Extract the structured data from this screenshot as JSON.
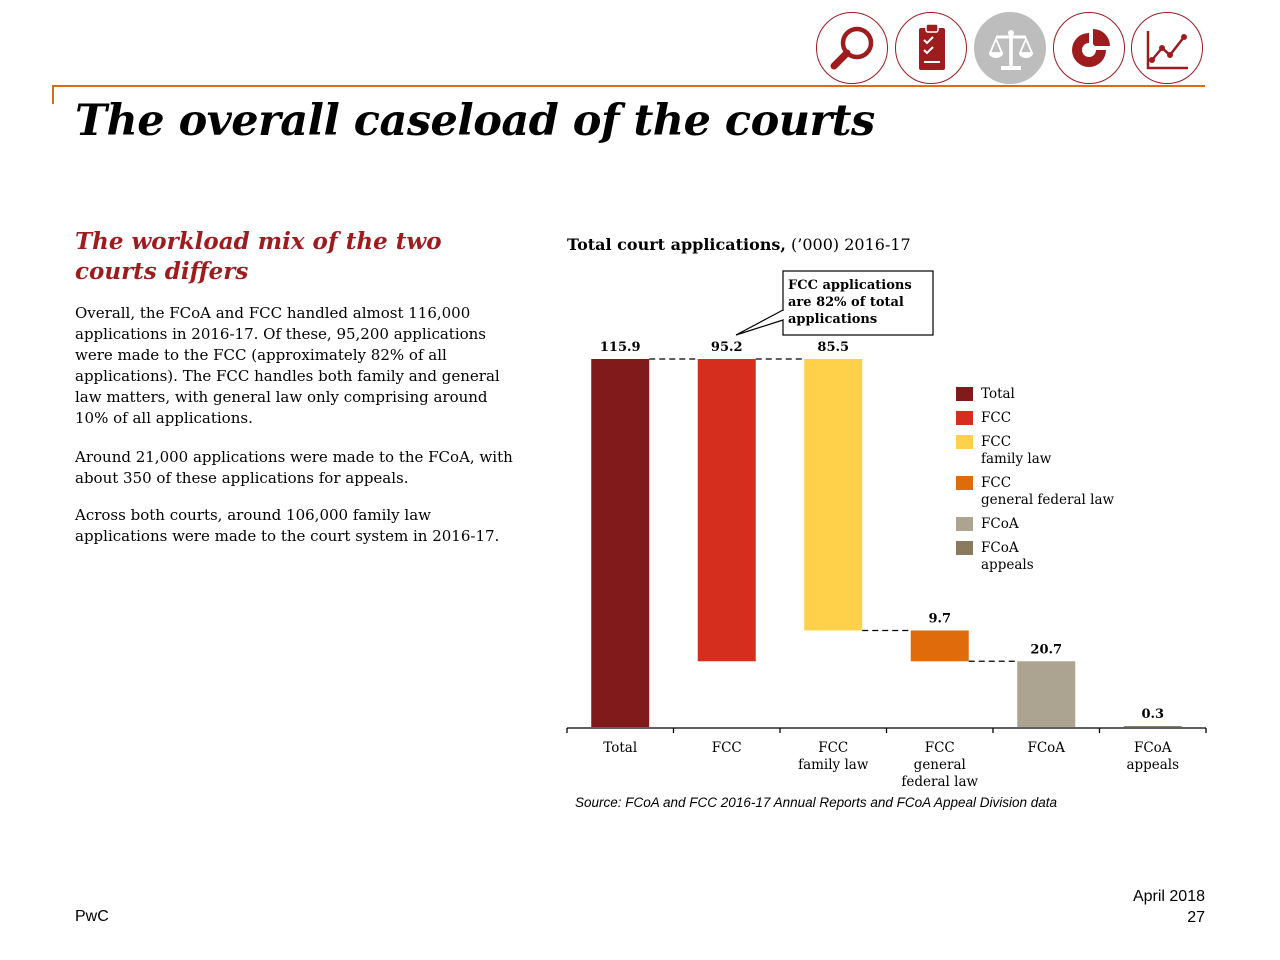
{
  "header": {
    "icons": [
      {
        "name": "search-icon",
        "active": false
      },
      {
        "name": "clipboard-checklist-icon",
        "active": false
      },
      {
        "name": "scales-icon",
        "active": true
      },
      {
        "name": "pie-chart-icon",
        "active": false
      },
      {
        "name": "line-chart-icon",
        "active": false
      }
    ],
    "accent_color": "#e06b16",
    "icon_color": "#9e1b1e"
  },
  "page": {
    "title": "The overall caseload of the courts"
  },
  "left": {
    "subheading": "The workload mix of the two courts differs",
    "paragraphs": [
      "Overall, the FCoA and FCC handled almost 116,000 applications in 2016-17. Of these, 95,200 applications were made to the FCC (approximately 82% of all applications). The FCC handles both family and general law matters, with general law only comprising around 10% of all applications.",
      "Around 21,000 applications were made to the FCoA, with about 350 of these applications for appeals.",
      "Across both courts, around 106,000 family law applications were made to the court system in 2016-17."
    ]
  },
  "chart": {
    "title_bold": "Total court applications,",
    "title_rest": " (’000) 2016-17",
    "callout": "FCC applications are 82% of total applications",
    "source": "Source: FCoA and FCC 2016-17 Annual Reports and FCoA Appeal Division data"
  },
  "chart_data": {
    "type": "bar",
    "subtype": "waterfall",
    "categories": [
      "Total",
      "FCC",
      "FCC\nfamily law",
      "FCC\ngeneral\nfederal law",
      "FCoA",
      "FCoA\nappeals"
    ],
    "values": [
      115.9,
      95.2,
      85.5,
      9.7,
      20.7,
      0.3
    ],
    "labels": [
      "115.9",
      "95.2",
      "85.5",
      "9.7",
      "20.7",
      "0.3"
    ],
    "bars": [
      {
        "bottom": 0,
        "top": 115.9
      },
      {
        "bottom": 20.7,
        "top": 115.9
      },
      {
        "bottom": 30.4,
        "top": 115.9
      },
      {
        "bottom": 20.7,
        "top": 30.4
      },
      {
        "bottom": 0,
        "top": 20.7
      },
      {
        "bottom": 0,
        "top": 0.3
      }
    ],
    "colors": [
      "#811a1a",
      "#d62e1e",
      "#ffd04a",
      "#e06b0a",
      "#aca391",
      "#8a7a5e"
    ],
    "legend": [
      {
        "label": "Total",
        "color": "#811a1a"
      },
      {
        "label": "FCC",
        "color": "#d62e1e"
      },
      {
        "label": "FCC\nfamily law",
        "color": "#ffd04a"
      },
      {
        "label": "FCC\ngeneral federal law",
        "color": "#e06b0a"
      },
      {
        "label": "FCoA",
        "color": "#aca391"
      },
      {
        "label": "FCoA\nappeals",
        "color": "#8a7a5e"
      }
    ],
    "legend_position": "right",
    "ylim": [
      0,
      115.9
    ],
    "grid": false
  },
  "footer": {
    "brand": "PwC",
    "date": "April 2018",
    "page_number": "27"
  }
}
